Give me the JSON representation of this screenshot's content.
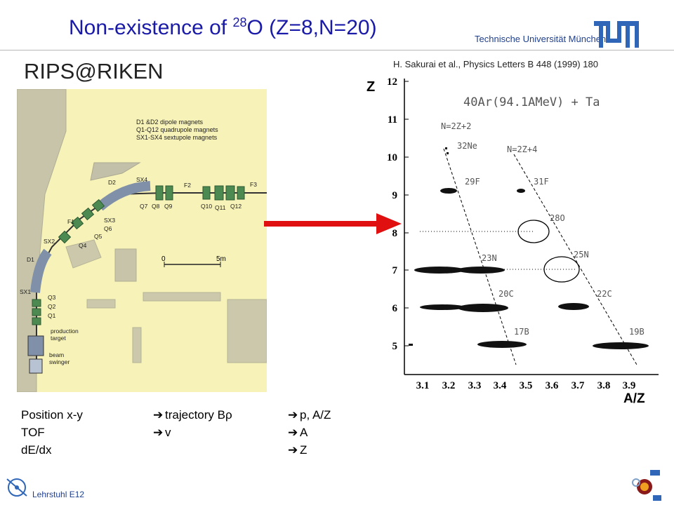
{
  "title": {
    "prefix": "Non-existence  of ",
    "sup": "28",
    "suffix": "O (Z=8,N=20)"
  },
  "university": "Technische Universität München",
  "subtitle": "RIPS@RIKEN",
  "reference": "H. Sakurai et al., Physics Letters B 448 (1999) 180",
  "beamline": {
    "legend": [
      "D1 &D2  dipole magnets",
      "Q1-Q12  quadrupole magnets",
      "SX1-SX4  sextupole magnets"
    ],
    "labels": [
      "D2",
      "SX4",
      "F2",
      "F3",
      "Q7",
      "Q8",
      "Q9",
      "Q10",
      "Q11",
      "Q12",
      "SX3",
      "Q6",
      "F1",
      "Q5",
      "Q4",
      "SX2",
      "D1",
      "SX1",
      "Q3",
      "Q2",
      "Q1",
      "production",
      "target",
      "beam",
      "swinger"
    ],
    "scale": [
      "0",
      "5m"
    ]
  },
  "plot": {
    "yaxis_label": "Z",
    "xaxis_label": "A/Z",
    "reaction": "40Ar(94.1AMeV) + Ta",
    "y_ticks": [
      "12",
      "11",
      "10",
      "9",
      "8",
      "7",
      "6",
      "5"
    ],
    "x_ticks": [
      "3.1",
      "3.2",
      "3.3",
      "3.4",
      "3.5",
      "3.6",
      "3.7",
      "3.8",
      "3.9"
    ],
    "line_labels": [
      "N=2Z+2",
      "N=2Z+4"
    ],
    "isotopes": [
      "32Ne",
      "29F",
      "31F",
      "28O",
      "23N",
      "25N",
      "20C",
      "22C",
      "17B",
      "19B"
    ]
  },
  "table": {
    "rows": [
      {
        "measure": "Position x-y",
        "mid": "trajectory B",
        "mid_sym": "ρ",
        "right": "p, A/Z"
      },
      {
        "measure": "TOF",
        "mid": "v",
        "mid_sym": "",
        "right": "A"
      },
      {
        "measure": "dE/dx",
        "mid": "",
        "mid_sym": "",
        "right": "Z"
      }
    ]
  },
  "footer": {
    "chair": "Lehrstuhl E12"
  },
  "colors": {
    "title": "#1a1aa8",
    "arrow": "#e01010",
    "beamline_bg": "#f7f2b8",
    "tum_blue": "#1f3f8f"
  }
}
